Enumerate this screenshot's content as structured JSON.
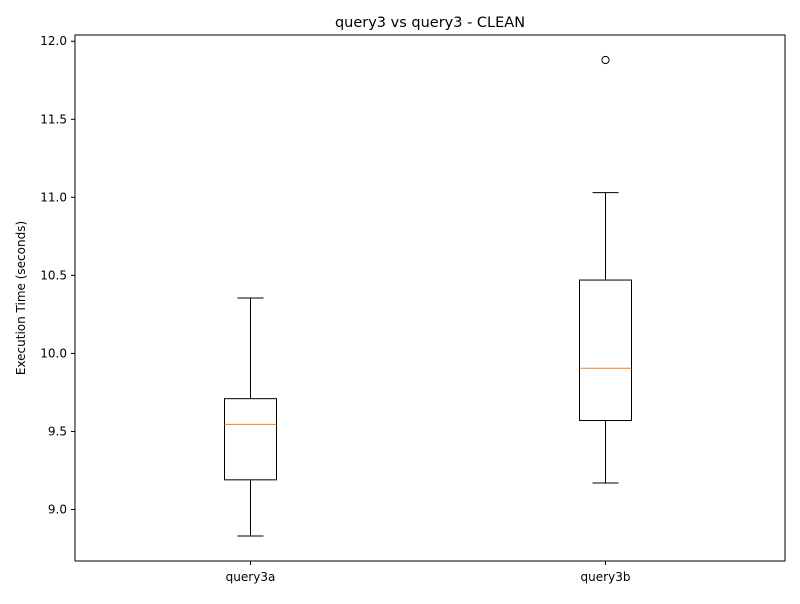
{
  "chart_data": {
    "type": "box",
    "title": "query3 vs query3 - CLEAN",
    "xlabel": "",
    "ylabel": "Execution Time (seconds)",
    "ylim": [
      8.67,
      12.04
    ],
    "yticks": [
      9.0,
      9.5,
      10.0,
      10.5,
      11.0,
      11.5,
      12.0
    ],
    "ytick_labels": [
      "9.0",
      "9.5",
      "10.0",
      "10.5",
      "11.0",
      "11.5",
      "12.0"
    ],
    "categories": [
      "query3a",
      "query3b"
    ],
    "boxes": [
      {
        "label": "query3a",
        "whisker_low": 8.83,
        "q1": 9.19,
        "median": 9.545,
        "q3": 9.71,
        "whisker_high": 10.355,
        "outliers": []
      },
      {
        "label": "query3b",
        "whisker_low": 9.17,
        "q1": 9.57,
        "median": 9.905,
        "q3": 10.47,
        "whisker_high": 11.03,
        "outliers": [
          11.88
        ]
      }
    ],
    "grid": false,
    "legend": "none",
    "colors": {
      "box": "#000000",
      "median": "#ff7f0e",
      "outlier": "#000000",
      "background": "#ffffff"
    }
  }
}
